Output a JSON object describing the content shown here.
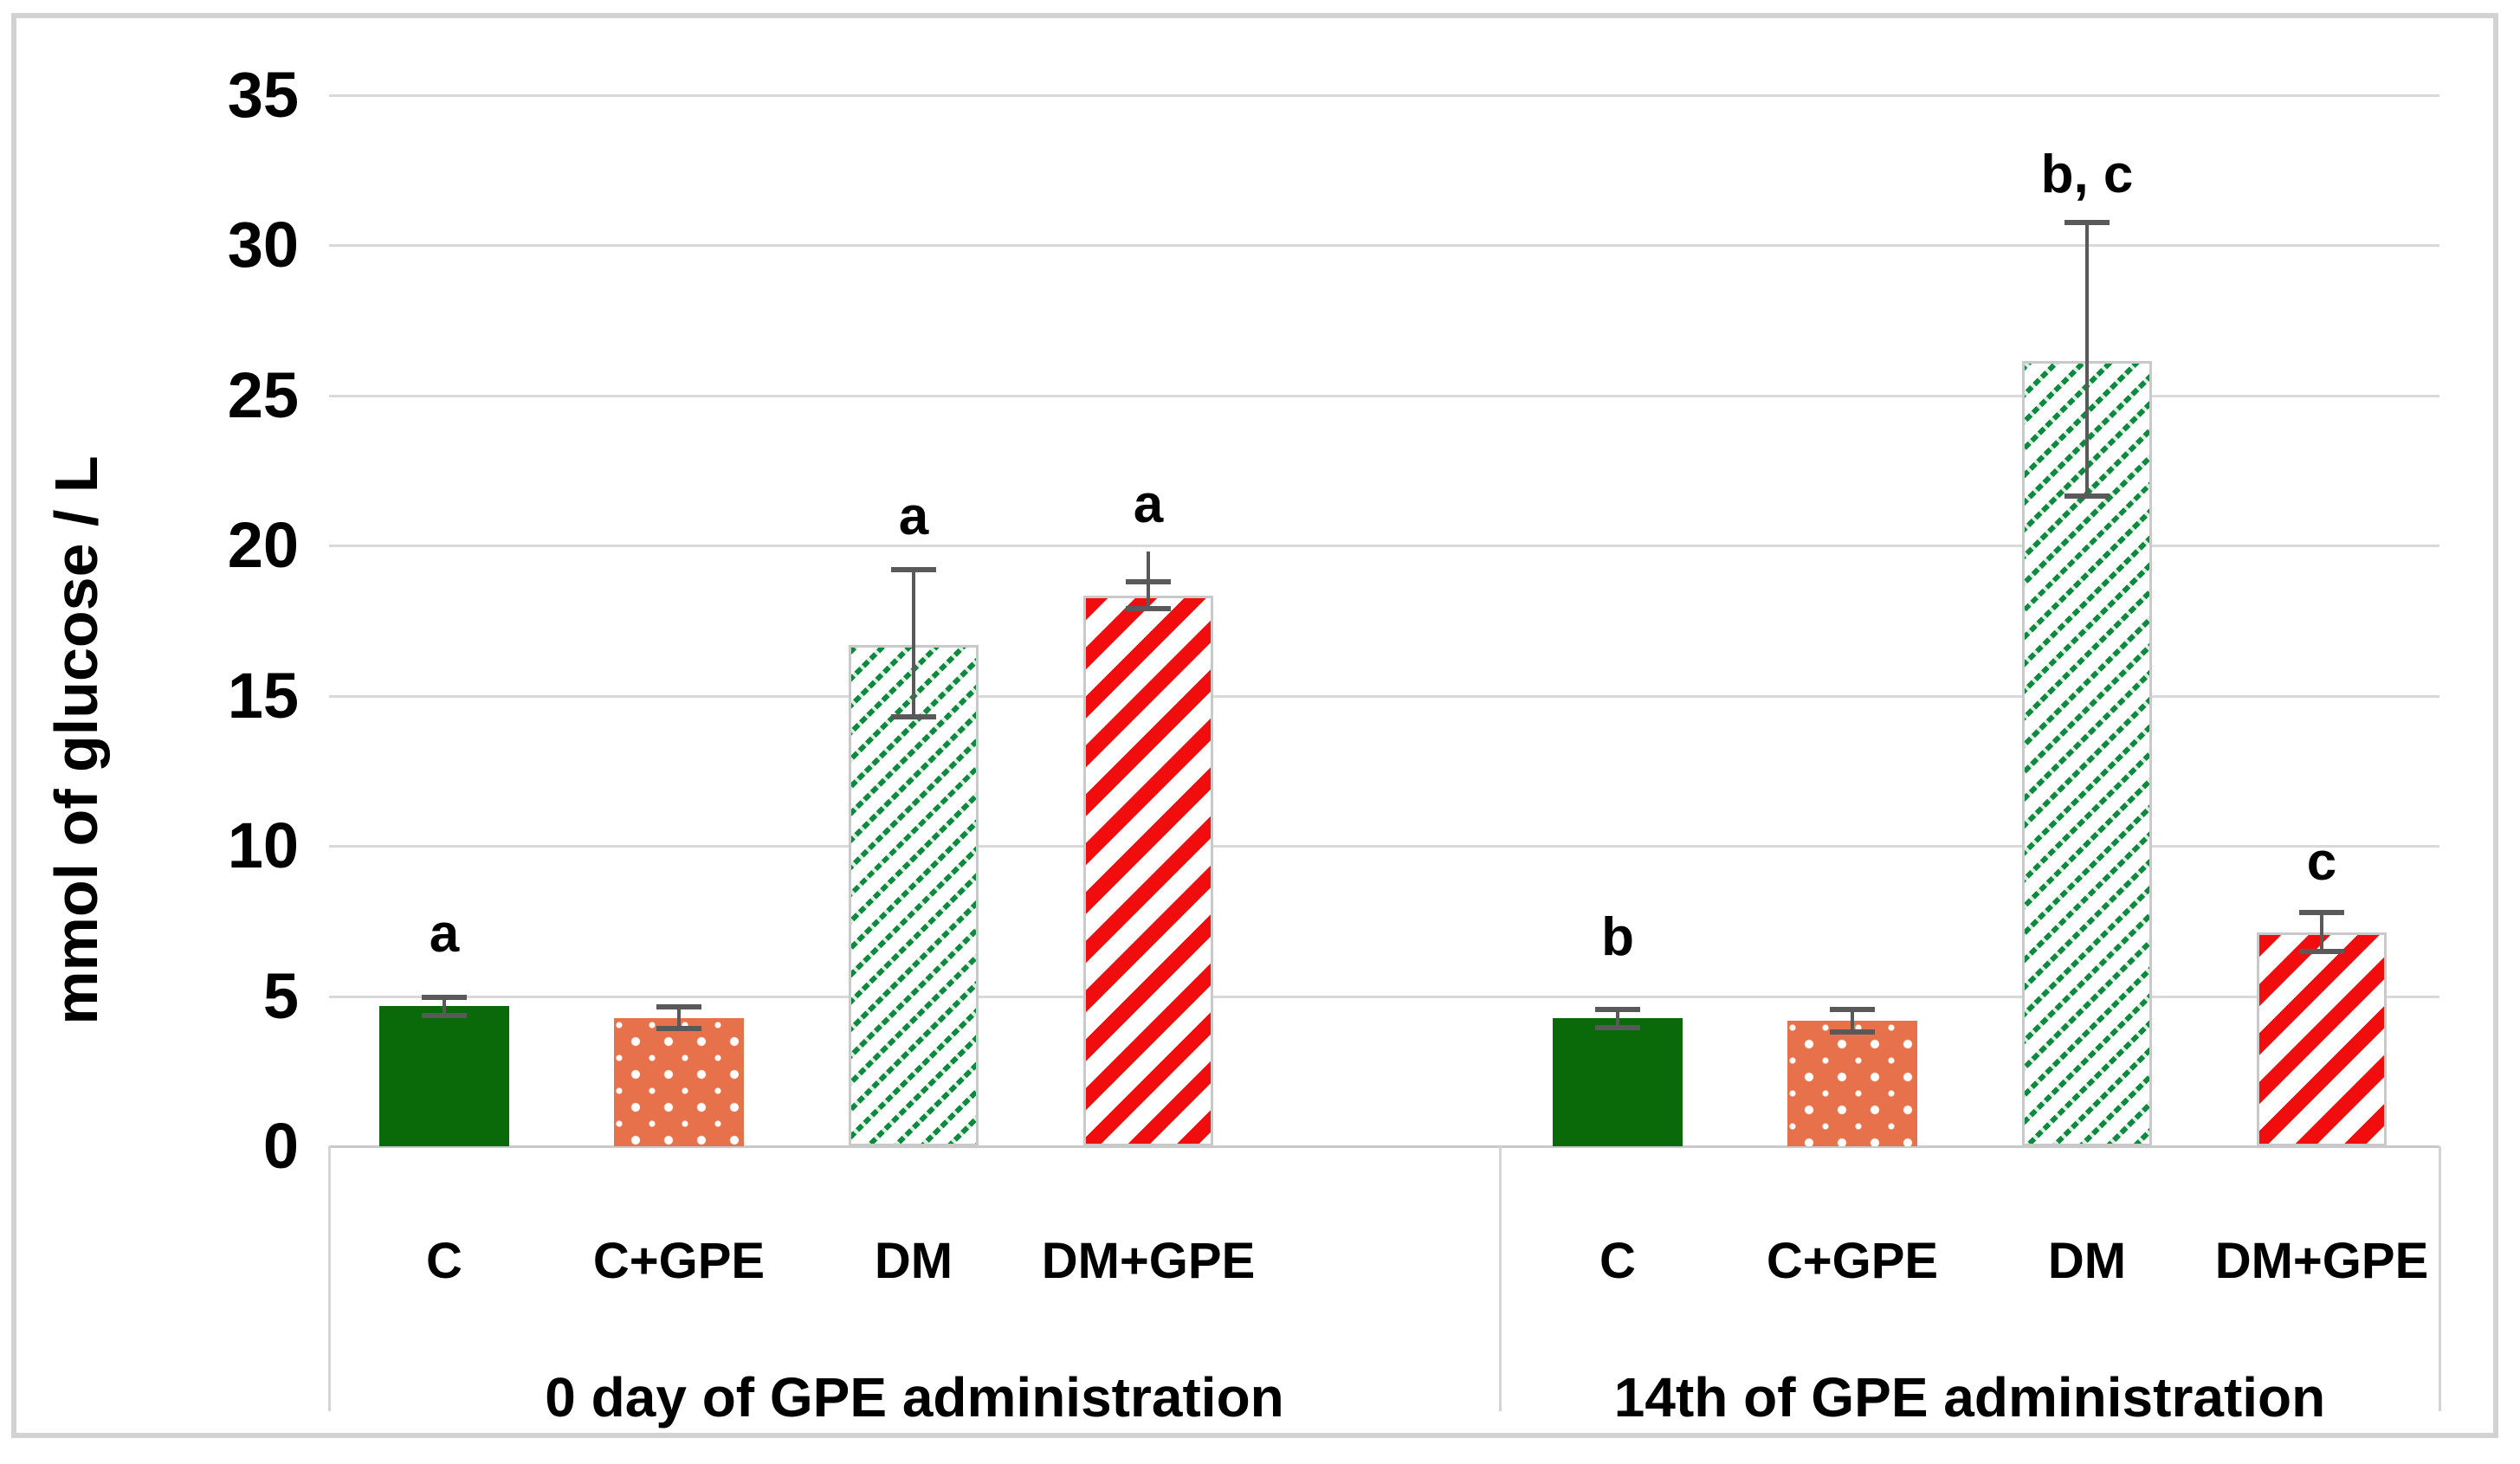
{
  "figure": {
    "frame_color": "#d2d2d2",
    "background": "#ffffff"
  },
  "chart_data": {
    "type": "bar",
    "title": "",
    "xlabel": "",
    "ylabel": "mmol of glucose / L",
    "ylim": [
      0,
      35
    ],
    "yticks": [
      0,
      5,
      10,
      15,
      20,
      25,
      30,
      35
    ],
    "grid": true,
    "legend": "none",
    "gridline_color": "#d9d9d9",
    "axis_line_color": "#c9c9c9",
    "error_bar_color": "#595959",
    "hatch_border_color": "#c9c9c9",
    "groups": [
      {
        "label": "0 day of GPE administration",
        "bars": [
          {
            "category": "C",
            "value": 4.67,
            "err_up": 4.97,
            "err_down": 4.35,
            "sig": "a",
            "sig_y": 6.1,
            "pattern": "solid",
            "fill": "#0a6a0a"
          },
          {
            "category": "C+GPE",
            "value": 4.28,
            "err_up": 4.63,
            "err_down": 3.92,
            "sig": "",
            "sig_y": 0,
            "pattern": "dots",
            "fill": "#e7714a"
          },
          {
            "category": "DM",
            "value": 16.7,
            "err_up": 19.2,
            "err_down": 14.3,
            "sig": "a",
            "sig_y": 20.0,
            "pattern": "hatch-thin",
            "fill": "#0e8a3e"
          },
          {
            "category": "DM+GPE",
            "value": 18.35,
            "err_up": 18.8,
            "err_down": 17.9,
            "whisker_top": 19.8,
            "sig": "a",
            "sig_y": 20.4,
            "pattern": "hatch-wide",
            "fill": "#f10d0d"
          }
        ]
      },
      {
        "label": "14th of GPE administration",
        "bars": [
          {
            "category": "C",
            "value": 4.27,
            "err_up": 4.55,
            "err_down": 3.95,
            "sig": "b",
            "sig_y": 6.0,
            "pattern": "solid",
            "fill": "#0a6a0a"
          },
          {
            "category": "C+GPE",
            "value": 4.18,
            "err_up": 4.55,
            "err_down": 3.8,
            "sig": "",
            "sig_y": 0,
            "pattern": "dots",
            "fill": "#e7714a"
          },
          {
            "category": "DM",
            "value": 26.15,
            "err_up": 30.75,
            "err_down": 21.65,
            "sig": "b, c",
            "sig_y": 31.4,
            "pattern": "hatch-thin",
            "fill": "#0e8a3e"
          },
          {
            "category": "DM+GPE",
            "value": 7.12,
            "err_up": 7.78,
            "err_down": 6.48,
            "sig": "c",
            "sig_y": 8.5,
            "pattern": "hatch-wide",
            "fill": "#f10d0d"
          }
        ]
      }
    ]
  }
}
